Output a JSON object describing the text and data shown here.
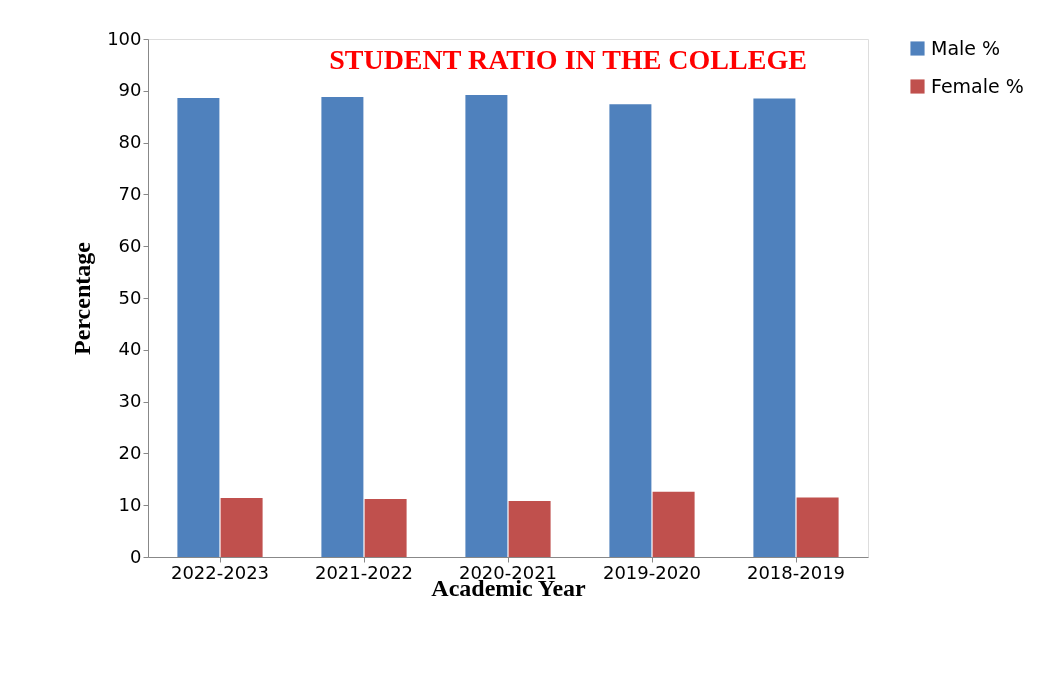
{
  "chart_data": {
    "type": "bar",
    "title": "STUDENT RATIO IN THE COLLEGE",
    "xlabel": "Academic Year",
    "ylabel": "Percentage",
    "categories": [
      "2022-2023",
      "2021-2022",
      "2020-2021",
      "2019-2020",
      "2018-2019"
    ],
    "series": [
      {
        "name": "Male %",
        "color": "#4f81bd",
        "values": [
          88.6,
          88.8,
          89.2,
          87.4,
          88.5
        ]
      },
      {
        "name": "Female %",
        "color": "#c0504d",
        "values": [
          11.4,
          11.2,
          10.8,
          12.6,
          11.5
        ]
      }
    ],
    "ylim": [
      0,
      100
    ],
    "yticks": [
      0,
      10,
      20,
      30,
      40,
      50,
      60,
      70,
      80,
      90,
      100
    ],
    "grid": false,
    "legend": "right"
  }
}
